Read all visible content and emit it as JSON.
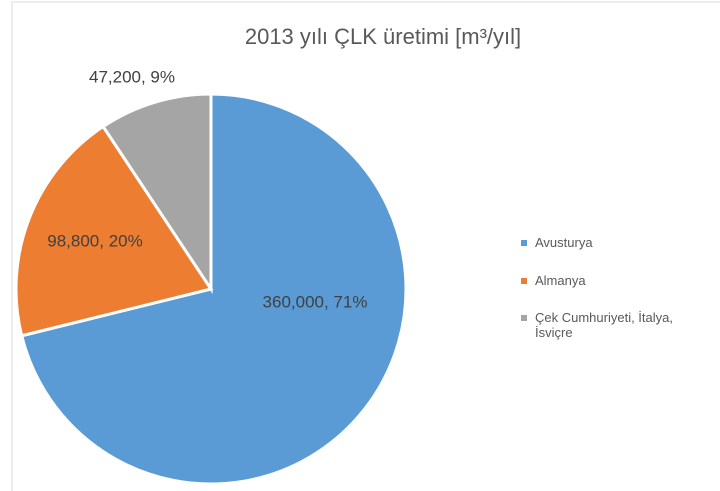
{
  "chart_data": {
    "type": "pie",
    "title": "2013 yılı ÇLK üretimi [m³/yıl]",
    "categories": [
      "Avusturya",
      "Almanya",
      "Çek Cumhuriyeti, İtalya, İsviçre"
    ],
    "values": [
      360000,
      98800,
      47200
    ],
    "value_labels": [
      "360,000, 71%",
      "98,800, 20%",
      "47,200, 9%"
    ],
    "colors": [
      "#5b9bd5",
      "#ed7d31",
      "#a5a5a5"
    ],
    "legend": "right"
  }
}
